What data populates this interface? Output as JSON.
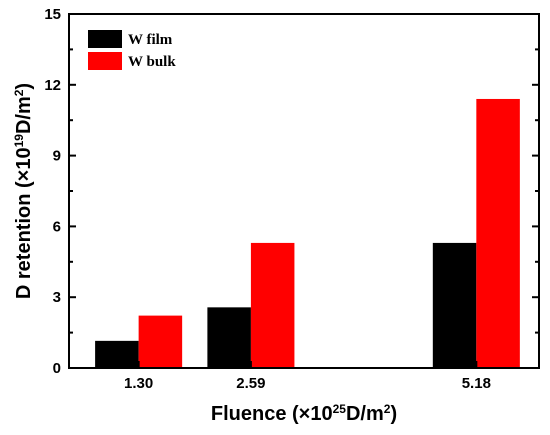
{
  "chart_data": {
    "type": "bar",
    "categories": [
      "1.30",
      "2.59",
      "5.18"
    ],
    "x": [
      1.3,
      2.59,
      5.18
    ],
    "series": [
      {
        "name": "W film",
        "color": "#000000",
        "values": [
          1.15,
          2.57,
          5.3
        ]
      },
      {
        "name": "W bulk",
        "color": "#ff0000",
        "values": [
          2.22,
          5.3,
          11.4
        ]
      }
    ],
    "xlabel": "Fluence (×10^25D/m^2)",
    "ylabel": "D retention (×10^19D/m^2)",
    "ylim": [
      0,
      15
    ],
    "yticks": [
      "0",
      "3",
      "6",
      "9",
      "12",
      "15"
    ],
    "grid": false,
    "legend_position": "top-left"
  }
}
